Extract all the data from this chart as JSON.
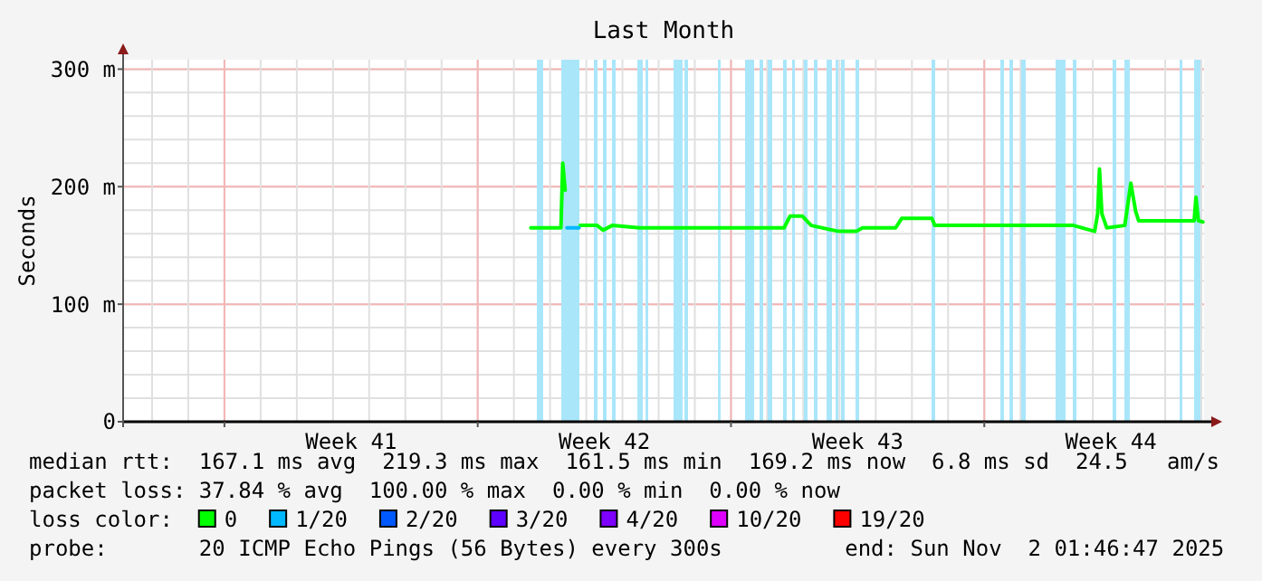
{
  "chart_data": {
    "type": "line",
    "title": "Last Month",
    "ylabel": "Seconds",
    "legend_title": "loss color:",
    "legend": "bottom",
    "grid": true,
    "line_style": "solid",
    "marker": "none",
    "xlim": [
      "2025-10-03T04:48",
      "2025-11-02T01:46"
    ],
    "xticks": [
      {
        "value": "2025-10-06T00:00",
        "label": null
      },
      {
        "value": "2025-10-09T12:00",
        "label": "Week 41"
      },
      {
        "value": "2025-10-13T00:00",
        "label": null
      },
      {
        "value": "2025-10-16T12:00",
        "label": "Week 42"
      },
      {
        "value": "2025-10-20T00:00",
        "label": null
      },
      {
        "value": "2025-10-23T12:00",
        "label": "Week 43"
      },
      {
        "value": "2025-10-27T00:00",
        "label": null
      },
      {
        "value": "2025-10-30T12:00",
        "label": "Week 44"
      }
    ],
    "ylim": [
      0,
      308
    ],
    "yticks": [
      {
        "value": 0,
        "label": "0"
      },
      {
        "value": 100,
        "label": "100 m"
      },
      {
        "value": 200,
        "label": "200 m"
      },
      {
        "value": 300,
        "label": "300 m"
      }
    ],
    "series": [
      {
        "name": "0",
        "color": "#00ff00",
        "x": [
          "2025-10-14T11:12",
          "2025-10-15T07:12",
          "2025-10-15T08:24",
          "2025-10-15T10:00",
          "2025-10-15T15:00",
          "2025-10-15T20:00",
          "2025-10-16T07:12",
          "2025-10-16T11:12",
          "2025-10-16T17:12",
          "2025-10-17T11:12",
          "2025-10-21T11:12",
          "2025-10-21T15:12",
          "2025-10-21T23:12",
          "2025-10-22T05:12",
          "2025-10-22T23:12",
          "2025-10-23T11:12",
          "2025-10-23T15:12",
          "2025-10-24T13:12",
          "2025-10-24T17:12",
          "2025-10-25T13:12",
          "2025-10-25T15:12",
          "2025-10-29T11:12",
          "2025-10-30T01:12",
          "2025-10-30T03:12",
          "2025-10-30T04:24",
          "2025-10-30T06:00",
          "2025-10-30T09:12",
          "2025-10-30T21:12",
          "2025-10-31T01:12",
          "2025-10-31T04:24",
          "2025-10-31T06:24",
          "2025-11-01T19:12",
          "2025-11-01T20:24",
          "2025-11-01T22:00",
          "2025-11-02T01:00"
        ],
        "values": [
          165,
          165,
          220,
          197,
          null,
          167,
          167,
          163,
          167,
          165,
          165,
          175,
          175,
          167,
          162,
          162,
          165,
          165,
          173,
          173,
          167,
          167,
          162,
          177,
          215,
          177,
          165,
          167,
          203,
          179,
          171,
          171,
          191,
          171,
          170
        ]
      },
      {
        "name": "1/20",
        "color": "#00b8ff",
        "x": [
          "2025-10-15T11:12",
          "2025-10-15T19:12"
        ],
        "values": [
          165,
          165
        ]
      },
      {
        "name": "2/20",
        "color": "#0059ff"
      },
      {
        "name": "3/20",
        "color": "#5e00ff"
      },
      {
        "name": "4/20",
        "color": "#7e00ff"
      },
      {
        "name": "10/20",
        "color": "#dd00ff"
      },
      {
        "name": "19/20",
        "color": "#ff0000"
      }
    ],
    "bands": [
      {
        "axis": "x",
        "from": "2025-10-14T15:12",
        "to": "2025-10-14T19:12",
        "color": "#aae6fa"
      },
      {
        "axis": "x",
        "from": "2025-10-15T07:12",
        "to": "2025-10-15T19:12",
        "color": "#aae6fa"
      },
      {
        "axis": "x",
        "from": "2025-10-16T05:12",
        "to": "2025-10-16T07:12",
        "color": "#aae6fa"
      },
      {
        "axis": "x",
        "from": "2025-10-16T11:12",
        "to": "2025-10-16T13:12",
        "color": "#aae6fa"
      },
      {
        "axis": "x",
        "from": "2025-10-16T17:12",
        "to": "2025-10-16T19:12",
        "color": "#aae6fa"
      },
      {
        "axis": "x",
        "from": "2025-10-17T09:36",
        "to": "2025-10-17T13:36",
        "color": "#aae6fa"
      },
      {
        "axis": "x",
        "from": "2025-10-17T15:12",
        "to": "2025-10-17T16:24",
        "color": "#aae6fa"
      },
      {
        "axis": "x",
        "from": "2025-10-18T09:36",
        "to": "2025-10-18T16:00",
        "color": "#aae6fa"
      },
      {
        "axis": "x",
        "from": "2025-10-18T17:12",
        "to": "2025-10-18T19:12",
        "color": "#aae6fa"
      },
      {
        "axis": "x",
        "from": "2025-10-19T15:36",
        "to": "2025-10-19T16:48",
        "color": "#aae6fa"
      },
      {
        "axis": "x",
        "from": "2025-10-20T09:36",
        "to": "2025-10-20T15:12",
        "color": "#aae6fa"
      },
      {
        "axis": "x",
        "from": "2025-10-20T19:12",
        "to": "2025-10-20T21:36",
        "color": "#aae6fa"
      },
      {
        "axis": "x",
        "from": "2025-10-21T00:24",
        "to": "2025-10-21T03:12",
        "color": "#aae6fa"
      },
      {
        "axis": "x",
        "from": "2025-10-21T10:48",
        "to": "2025-10-21T13:12",
        "color": "#aae6fa"
      },
      {
        "axis": "x",
        "from": "2025-10-21T16:24",
        "to": "2025-10-21T18:24",
        "color": "#aae6fa"
      },
      {
        "axis": "x",
        "from": "2025-10-22T00:24",
        "to": "2025-10-22T02:48",
        "color": "#aae6fa"
      },
      {
        "axis": "x",
        "from": "2025-10-22T07:12",
        "to": "2025-10-22T09:36",
        "color": "#aae6fa"
      },
      {
        "axis": "x",
        "from": "2025-10-22T15:36",
        "to": "2025-10-22T18:48",
        "color": "#aae6fa"
      },
      {
        "axis": "x",
        "from": "2025-10-22T21:12",
        "to": "2025-10-22T23:12",
        "color": "#aae6fa"
      },
      {
        "axis": "x",
        "from": "2025-10-23T01:12",
        "to": "2025-10-23T03:36",
        "color": "#aae6fa"
      },
      {
        "axis": "x",
        "from": "2025-10-23T10:24",
        "to": "2025-10-23T12:48",
        "color": "#aae6fa"
      },
      {
        "axis": "x",
        "from": "2025-10-25T13:12",
        "to": "2025-10-25T15:36",
        "color": "#aae6fa"
      },
      {
        "axis": "x",
        "from": "2025-10-27T10:48",
        "to": "2025-10-27T13:12",
        "color": "#aae6fa"
      },
      {
        "axis": "x",
        "from": "2025-10-27T16:48",
        "to": "2025-10-27T19:12",
        "color": "#aae6fa"
      },
      {
        "axis": "x",
        "from": "2025-10-28T00:24",
        "to": "2025-10-28T03:12",
        "color": "#aae6fa"
      },
      {
        "axis": "x",
        "from": "2025-10-28T23:24",
        "to": "2025-10-29T05:36",
        "color": "#aae6fa"
      },
      {
        "axis": "x",
        "from": "2025-10-29T10:24",
        "to": "2025-10-29T13:12",
        "color": "#aae6fa"
      },
      {
        "axis": "x",
        "from": "2025-10-30T13:12",
        "to": "2025-10-30T15:36",
        "color": "#aae6fa"
      },
      {
        "axis": "x",
        "from": "2025-10-30T21:12",
        "to": "2025-10-31T00:48",
        "color": "#aae6fa"
      },
      {
        "axis": "x",
        "from": "2025-11-01T09:36",
        "to": "2025-11-01T10:48",
        "color": "#aae6fa"
      },
      {
        "axis": "x",
        "from": "2025-11-01T19:12",
        "to": "2025-11-01T23:12",
        "color": "#aae6fa"
      }
    ],
    "annotations": [
      "median rtt:  167.1 ms avg  219.3 ms max  161.5 ms min  169.2 ms now  6.8 ms sd  24.5   am/s",
      "packet loss: 37.84 % avg  100.00 % max  0.00 % min  0.00 % now",
      "probe:       20 ICMP Echo Pings (56 Bytes) every 300s",
      "end: Sun Nov  2 01:46:47 2025"
    ]
  }
}
